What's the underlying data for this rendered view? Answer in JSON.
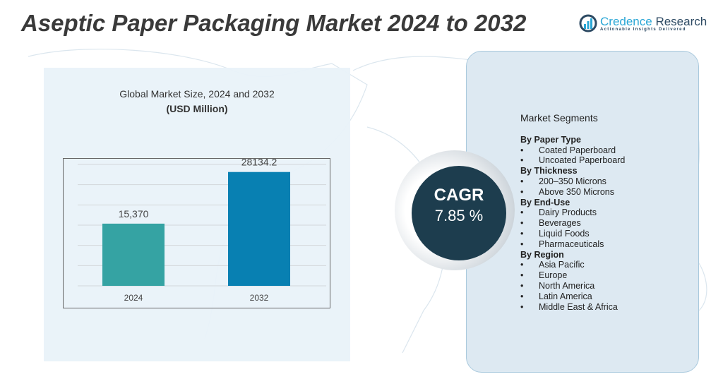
{
  "header": {
    "title": "Aseptic Paper Packaging Market 2024 to 2032"
  },
  "logo": {
    "name_a": "Credence",
    "name_b": " Research",
    "tagline": "Actionable Insights Delivered"
  },
  "chart_data": {
    "type": "bar",
    "title": "Global Market Size, 2024 and 2032",
    "subtitle": "(USD Million)",
    "categories": [
      "2024",
      "2032"
    ],
    "values": [
      15370,
      28134.2
    ],
    "value_labels": [
      "15,370",
      "28134.2"
    ],
    "colors": [
      "#35a3a3",
      "#0880b2"
    ],
    "ylim": [
      0,
      30000
    ],
    "grid": true
  },
  "cagr": {
    "label": "CAGR",
    "value": "7.85  %"
  },
  "segments": {
    "title": "Market Segments",
    "groups": [
      {
        "name": "By Paper Type",
        "items": [
          "Coated Paperboard",
          "Uncoated Paperboard"
        ]
      },
      {
        "name": "By Thickness",
        "items": [
          "200–350 Microns",
          "Above 350 Microns"
        ]
      },
      {
        "name": "By End-Use",
        "items": [
          "Dairy Products",
          "Beverages",
          "Liquid Foods",
          "Pharmaceuticals"
        ]
      },
      {
        "name": "By Region",
        "items": [
          "Asia Pacific",
          "Europe",
          "North America",
          "Latin America",
          "Middle East & Africa"
        ]
      }
    ]
  }
}
